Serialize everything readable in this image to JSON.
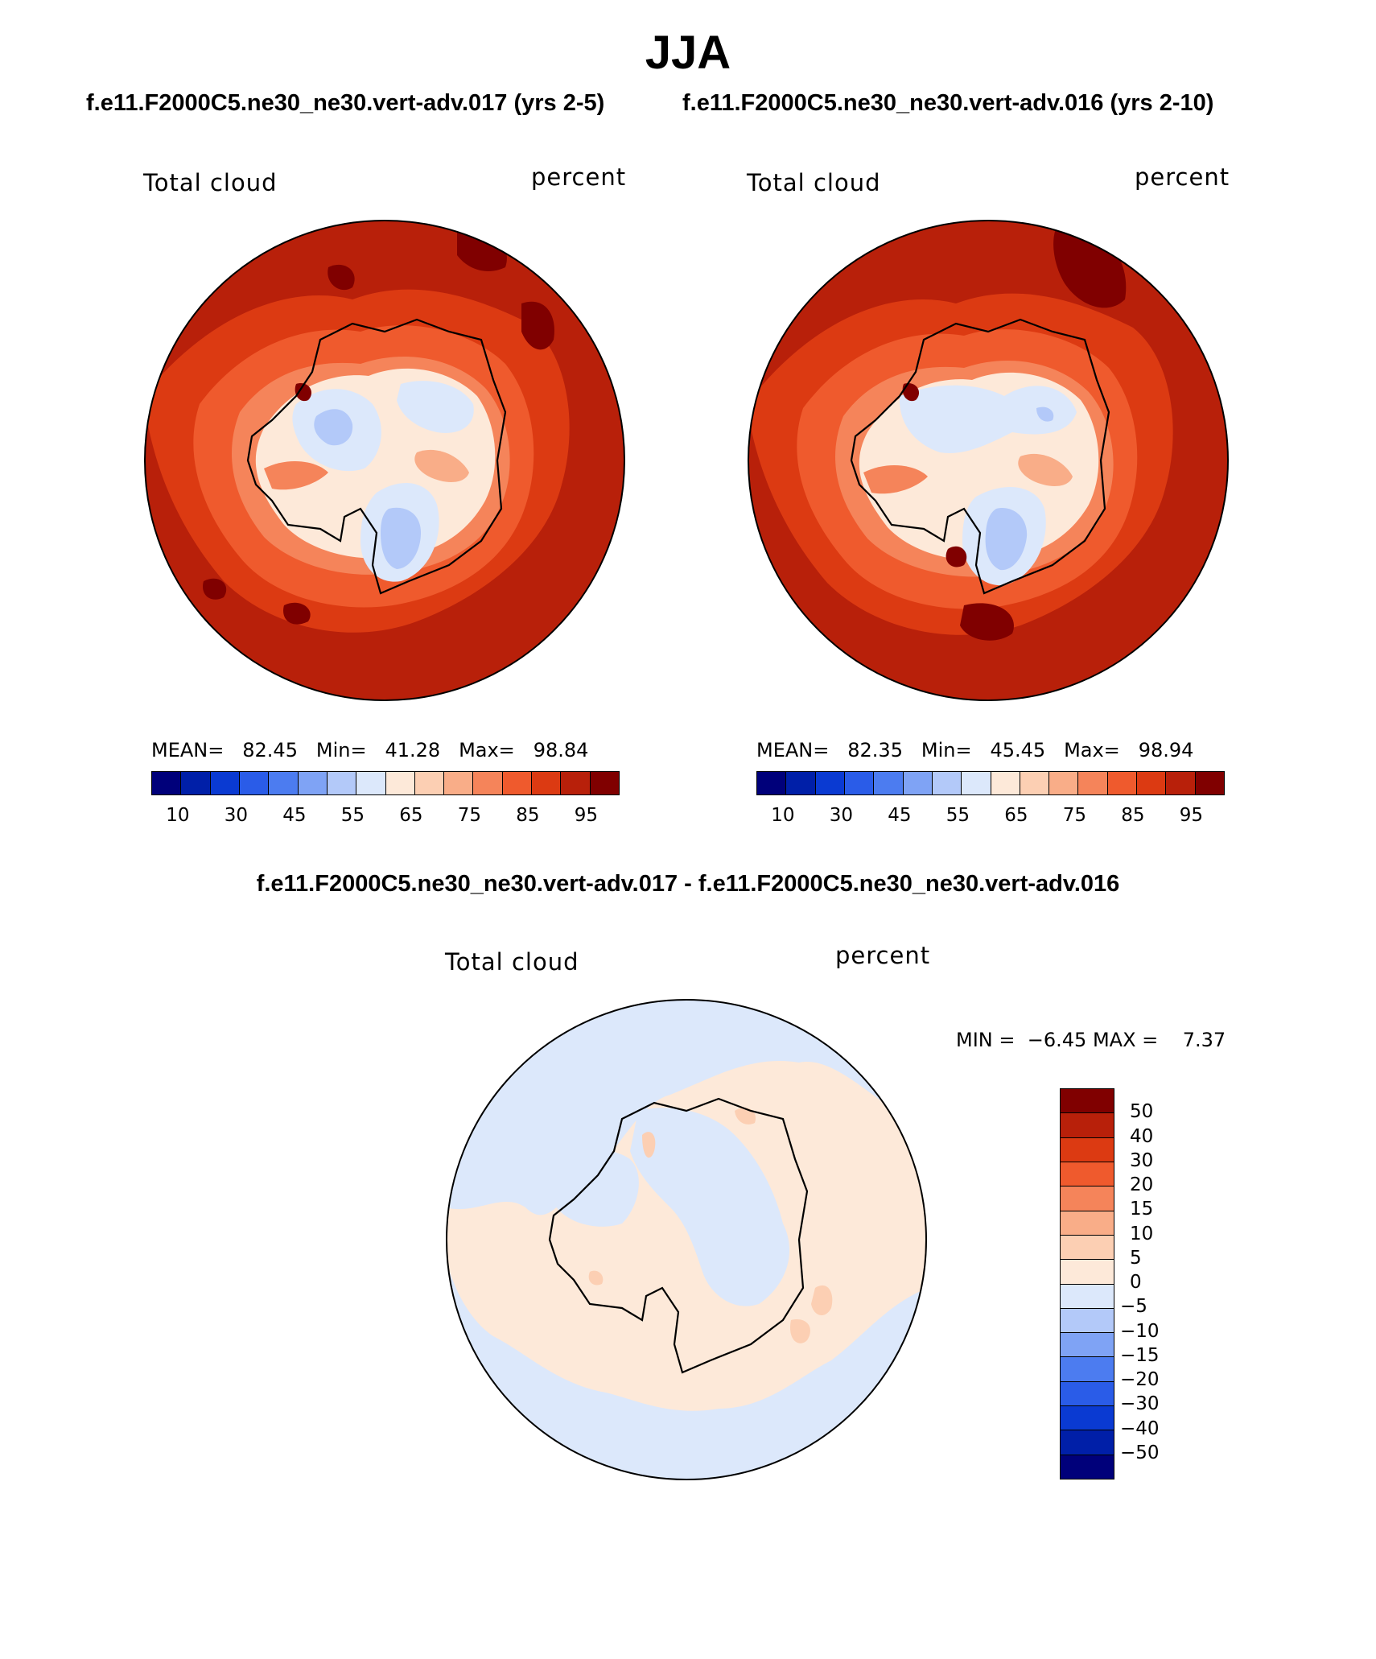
{
  "title": "JJA",
  "top_subtitle_left": "f.e11.F2000C5.ne30_ne30.vert-adv.017 (yrs 2-5)",
  "top_subtitle_right": "f.e11.F2000C5.ne30_ne30.vert-adv.016 (yrs 2-10)",
  "diff_subtitle": "f.e11.F2000C5.ne30_ne30.vert-adv.017 - f.e11.F2000C5.ne30_ne30.vert-adv.016",
  "panels": [
    {
      "variable": "Total cloud",
      "units": "percent",
      "mean_label": "MEAN=",
      "mean": "82.45",
      "min_label": "Min=",
      "min": "41.28",
      "max_label": "Max=",
      "max": "98.84"
    },
    {
      "variable": "Total cloud",
      "units": "percent",
      "mean_label": "MEAN=",
      "mean": "82.35",
      "min_label": "Min=",
      "min": "45.45",
      "max_label": "Max=",
      "max": "98.94"
    }
  ],
  "diff_panel": {
    "variable": "Total cloud",
    "units": "percent",
    "min_label": "MIN =",
    "min": "−6.45",
    "max_label": "MAX =",
    "max": "7.37"
  },
  "abs_colorbar": {
    "colors": [
      "#00007a",
      "#001fa8",
      "#0a3ad2",
      "#2a5ce8",
      "#4c7cf0",
      "#7fa3f5",
      "#b3c9f9",
      "#dce8fb",
      "#fde9d9",
      "#fccfb3",
      "#f9ad88",
      "#f5845a",
      "#ef5a2d",
      "#dc3a12",
      "#b8200a",
      "#800000"
    ],
    "tick_labels": [
      "10",
      "30",
      "45",
      "55",
      "65",
      "75",
      "85",
      "95"
    ]
  },
  "diff_colorbar": {
    "colors": [
      "#800000",
      "#b8200a",
      "#dc3a12",
      "#ef5a2d",
      "#f5845a",
      "#f9ad88",
      "#fccfb3",
      "#fde9d9",
      "#dce8fb",
      "#b3c9f9",
      "#7fa3f5",
      "#4c7cf0",
      "#2a5ce8",
      "#0a3ad2",
      "#001fa8",
      "#00007a"
    ],
    "tick_labels": [
      "50",
      "40",
      "30",
      "20",
      "15",
      "10",
      "5",
      "0",
      "−5",
      "−10",
      "−15",
      "−20",
      "−30",
      "−40",
      "−50"
    ]
  },
  "map_colors": {
    "ocean_dark": "#b8200a",
    "ocean_mid": "#dc3a12",
    "ocean_light": "#ef5a2d",
    "coast_mid": "#f5845a",
    "coast_light": "#f9ad88",
    "ice_pale": "#fde9d9",
    "ice_blue": "#dce8fb",
    "ice_blue2": "#b3c9f9",
    "ice_blue3": "#7fa3f5",
    "ice_blue4": "#4c7cf0",
    "max_red": "#800000",
    "diff_blue": "#dce8fb",
    "diff_pink": "#fde9d9",
    "diff_orange": "#fccfb3"
  }
}
